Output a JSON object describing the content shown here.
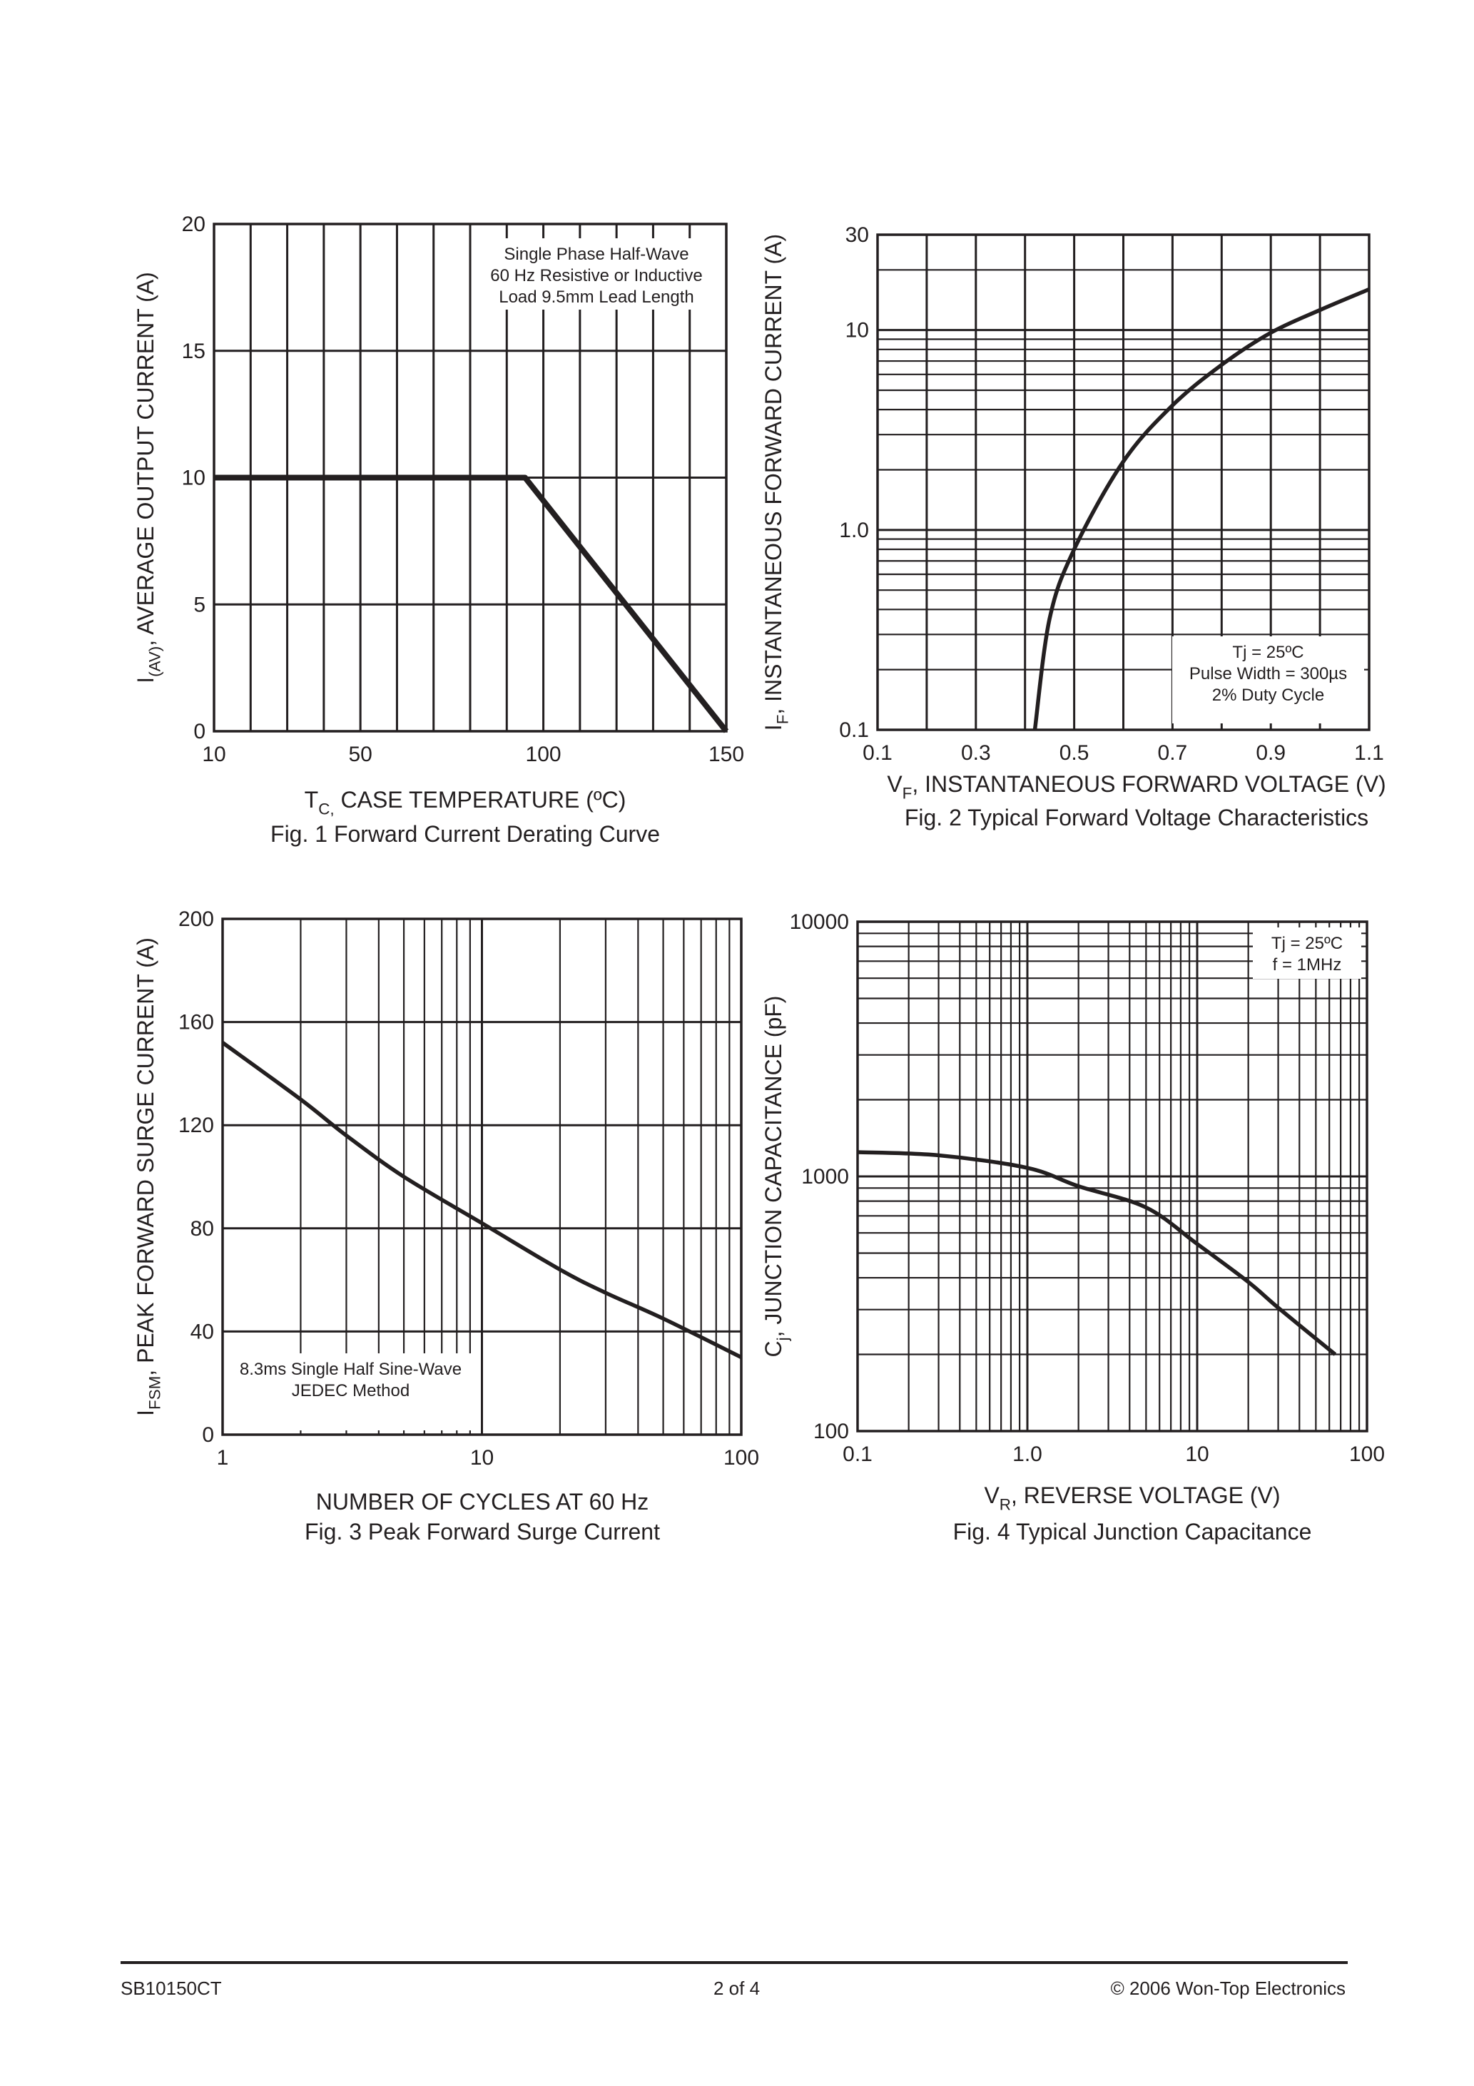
{
  "footer": {
    "part_number": "SB10150CT",
    "page": "2 of 4",
    "copyright": "© 2006 Won-Top Electronics"
  },
  "chart_data": [
    {
      "type": "line",
      "caption": "Fig. 1  Forward Current Derating Curve",
      "xlabel": {
        "main": "T",
        "sub": "C,",
        "rest": " CASE TEMPERATURE (ºC)"
      },
      "ylabel": {
        "main": "I",
        "sub": "(AV)",
        "rest": ", AVERAGE OUTPUT CURRENT (A)"
      },
      "xscale": "linear",
      "yscale": "linear",
      "xlim": [
        10,
        150
      ],
      "ylim": [
        0,
        20
      ],
      "xticks": [
        {
          "v": 10,
          "label": "10"
        },
        {
          "v": 50,
          "label": "50"
        },
        {
          "v": 100,
          "label": "100"
        },
        {
          "v": 150,
          "label": "150"
        }
      ],
      "yticks": [
        {
          "v": 0,
          "label": "0"
        },
        {
          "v": 5,
          "label": "5"
        },
        {
          "v": 10,
          "label": "10"
        },
        {
          "v": 15,
          "label": "15"
        },
        {
          "v": 20,
          "label": "20"
        }
      ],
      "xgrid": [
        10,
        20,
        30,
        40,
        50,
        60,
        70,
        80,
        90,
        100,
        110,
        120,
        130,
        140,
        150
      ],
      "ygrid": [
        0,
        5,
        10,
        15,
        20
      ],
      "grid": true,
      "annotation": [
        "Single Phase Half-Wave",
        "60 Hz Resistive or Inductive",
        "Load 9.5mm Lead Length"
      ],
      "annotation_placement": "top-right",
      "smooth": false,
      "points": [
        [
          10,
          10
        ],
        [
          95,
          10
        ],
        [
          150,
          0
        ]
      ]
    },
    {
      "type": "line",
      "caption": "Fig. 2  Typical Forward Voltage Characteristics",
      "xlabel": {
        "main": "V",
        "sub": "F",
        "rest": ", INSTANTANEOUS FORWARD VOLTAGE (V)"
      },
      "ylabel": {
        "main": "I",
        "sub": "F",
        "rest": ", INSTANTANEOUS FORWARD CURRENT (A)"
      },
      "xscale": "linear",
      "yscale": "log",
      "xlim": [
        0.1,
        1.1
      ],
      "ylim": [
        0.1,
        30
      ],
      "xticks": [
        {
          "v": 0.1,
          "label": "0.1"
        },
        {
          "v": 0.3,
          "label": "0.3"
        },
        {
          "v": 0.5,
          "label": "0.5"
        },
        {
          "v": 0.7,
          "label": "0.7"
        },
        {
          "v": 0.9,
          "label": "0.9"
        },
        {
          "v": 1.1,
          "label": "1.1"
        }
      ],
      "yticks": [
        {
          "v": 0.1,
          "label": "0.1"
        },
        {
          "v": 1,
          "label": "1.0"
        },
        {
          "v": 10,
          "label": "10"
        },
        {
          "v": 30,
          "label": "30"
        }
      ],
      "xgrid": [
        0.1,
        0.2,
        0.3,
        0.4,
        0.5,
        0.6,
        0.7,
        0.8,
        0.9,
        1.0,
        1.1
      ],
      "ygrid": [
        0.1,
        0.2,
        0.3,
        0.4,
        0.5,
        0.6,
        0.7,
        0.8,
        0.9,
        1,
        2,
        3,
        4,
        5,
        6,
        7,
        8,
        9,
        10,
        20,
        30
      ],
      "grid": true,
      "annotation": [
        "Tj =  25ºC",
        "Pulse Width =  300µs",
        "2% Duty Cycle"
      ],
      "annotation_placement": "bottom-right",
      "smooth": true,
      "points": [
        [
          0.42,
          0.1
        ],
        [
          0.45,
          0.36
        ],
        [
          0.5,
          0.8
        ],
        [
          0.6,
          2.2
        ],
        [
          0.7,
          4.2
        ],
        [
          0.8,
          6.7
        ],
        [
          0.9,
          9.7
        ],
        [
          1.0,
          12.6
        ],
        [
          1.1,
          16
        ]
      ]
    },
    {
      "type": "line",
      "caption": "Fig. 3  Peak Forward Surge Current",
      "xlabel": {
        "main": "NUMBER OF CYCLES AT 60 Hz",
        "sub": "",
        "rest": ""
      },
      "ylabel": {
        "main": "I",
        "sub": "FSM",
        "rest": ", PEAK FORWARD SURGE CURRENT (A)"
      },
      "xscale": "log",
      "yscale": "linear",
      "xlim": [
        1,
        100
      ],
      "ylim": [
        0,
        200
      ],
      "xticks": [
        {
          "v": 1,
          "label": "1"
        },
        {
          "v": 10,
          "label": "10"
        },
        {
          "v": 100,
          "label": "100"
        }
      ],
      "yticks": [
        {
          "v": 0,
          "label": "0"
        },
        {
          "v": 40,
          "label": "40"
        },
        {
          "v": 80,
          "label": "80"
        },
        {
          "v": 120,
          "label": "120"
        },
        {
          "v": 160,
          "label": "160"
        },
        {
          "v": 200,
          "label": "200"
        }
      ],
      "xgrid": [
        1,
        2,
        3,
        4,
        5,
        6,
        7,
        8,
        9,
        10,
        20,
        30,
        40,
        50,
        60,
        70,
        80,
        90,
        100
      ],
      "ygrid": [
        0,
        40,
        80,
        120,
        160,
        200
      ],
      "grid": true,
      "annotation": [
        "8.3ms Single Half Sine-Wave",
        "JEDEC Method"
      ],
      "annotation_placement": "bottom-left",
      "smooth": true,
      "points": [
        [
          1,
          152
        ],
        [
          2,
          130
        ],
        [
          3,
          116
        ],
        [
          5,
          100
        ],
        [
          10,
          82
        ],
        [
          20,
          64
        ],
        [
          30,
          55
        ],
        [
          50,
          45
        ],
        [
          100,
          30
        ]
      ]
    },
    {
      "type": "line",
      "caption": "Fig. 4  Typical  Junction Capacitance",
      "xlabel": {
        "main": "V",
        "sub": "R",
        "rest": ", REVERSE VOLTAGE (V)"
      },
      "ylabel": {
        "main": "C",
        "sub": "j",
        "rest": ", JUNCTION CAPACITANCE (pF)"
      },
      "xscale": "log",
      "yscale": "log",
      "xlim": [
        0.1,
        100
      ],
      "ylim": [
        100,
        10000
      ],
      "xticks": [
        {
          "v": 0.1,
          "label": "0.1"
        },
        {
          "v": 1,
          "label": "1.0"
        },
        {
          "v": 10,
          "label": "10"
        },
        {
          "v": 100,
          "label": "100"
        }
      ],
      "yticks": [
        {
          "v": 100,
          "label": "100"
        },
        {
          "v": 1000,
          "label": "1000"
        },
        {
          "v": 10000,
          "label": "10000"
        }
      ],
      "xgrid": [
        0.1,
        0.2,
        0.3,
        0.4,
        0.5,
        0.6,
        0.7,
        0.8,
        0.9,
        1,
        2,
        3,
        4,
        5,
        6,
        7,
        8,
        9,
        10,
        20,
        30,
        40,
        50,
        60,
        70,
        80,
        90,
        100
      ],
      "ygrid": [
        100,
        200,
        300,
        400,
        500,
        600,
        700,
        800,
        900,
        1000,
        2000,
        3000,
        4000,
        5000,
        6000,
        7000,
        8000,
        9000,
        10000
      ],
      "grid": true,
      "annotation": [
        "Tj =  25ºC",
        "f =  1MHz"
      ],
      "annotation_placement": "top-right",
      "smooth": true,
      "points": [
        [
          0.1,
          1245
        ],
        [
          0.3,
          1210
        ],
        [
          1,
          1080
        ],
        [
          2,
          915
        ],
        [
          5,
          755
        ],
        [
          10,
          543
        ],
        [
          20,
          385
        ],
        [
          30,
          305
        ],
        [
          65,
          200
        ]
      ]
    }
  ]
}
